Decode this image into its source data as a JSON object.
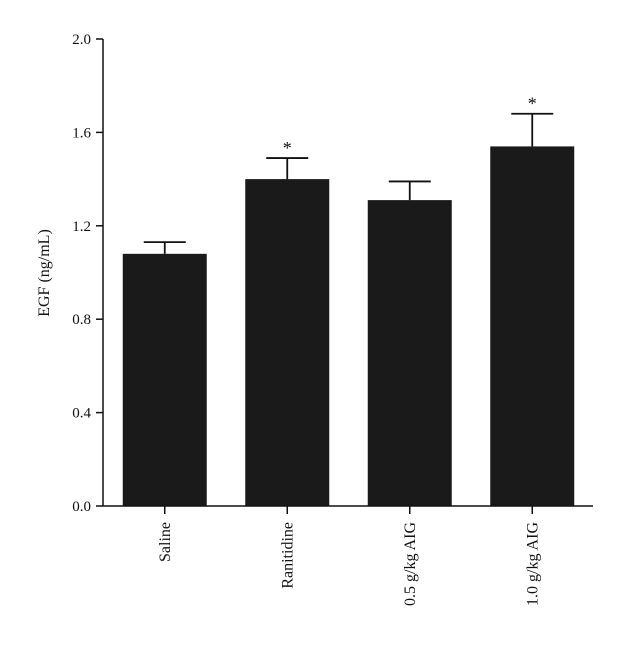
{
  "chart_data": {
    "type": "bar",
    "title": "",
    "xlabel": "",
    "ylabel": "EGF (ng/mL)",
    "ylim": [
      0.0,
      2.0
    ],
    "yticks": [
      "0.0",
      "0.4",
      "0.8",
      "1.2",
      "1.6",
      "2.0"
    ],
    "grid": false,
    "legend": "none",
    "bar_color": "#1a1a1a",
    "categories": [
      "Saline",
      "Ranitidine",
      "0.5 g/kg AIG",
      "1.0 g/kg AIG"
    ],
    "values": [
      1.08,
      1.4,
      1.31,
      1.54
    ],
    "error_upper": [
      1.13,
      1.49,
      1.39,
      1.68
    ],
    "annotations": [
      "",
      "*",
      "",
      "*"
    ]
  }
}
